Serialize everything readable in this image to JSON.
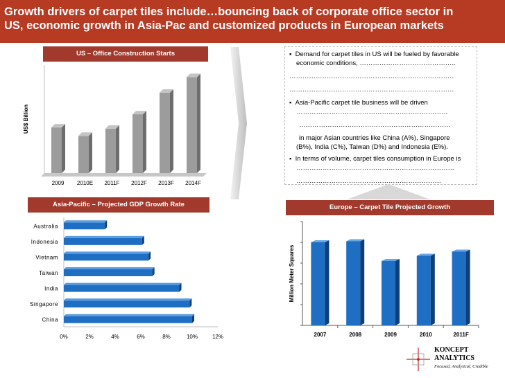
{
  "title": {
    "line1": "Growth drivers of carpet tiles include…bouncing back of corporate office sector in",
    "line2": "US, economic growth in Asia-Pac and customized products in European markets"
  },
  "notes": {
    "b1": "Demand for carpet tiles in US will be fueled by favorable",
    "b1_l2": "economic conditions, ……………………………………..",
    "b1_l3": "…………………………………………………………………",
    "b1_l4": "…………………………………………………………………",
    "b2": "Asia-Pacific carpet tile business will be driven",
    "b2_l2": "……………………………………………………………",
    "b2_l3": "……………………………………………………………",
    "b2_l4": "in major Asian countries like China (A%), Singapore",
    "b2_l5": "(B%), India (C%), Taiwan (D%) and Indonesia (E%).",
    "b3": "In terms of volume, carpet tiles consumption in Europe is",
    "b3_l2": "………………………………………………………………",
    "b3_l3": "…………………………………………………………"
  },
  "logo": {
    "name1": "KONCEPT",
    "name2": "ANALYTICS",
    "tagline": "Focused, Analytical, Credible"
  },
  "colors": {
    "brand": "#b73a23",
    "header": "#a13a2c",
    "gray_bar": "#999999",
    "blue_bar": "#1e6fc4"
  },
  "chart_data": [
    {
      "type": "bar",
      "title": "US – Office Construction Starts",
      "ylabel": "US$ Billion",
      "categories": [
        "2009",
        "2010E",
        "2011F",
        "2012F",
        "2013F",
        "2014F"
      ],
      "values": [
        38,
        31,
        37,
        49,
        67,
        80
      ],
      "ylim": [
        0,
        90
      ]
    },
    {
      "type": "bar",
      "orientation": "horizontal",
      "title": "Asia-Pacific – Projected GDP Growth Rate",
      "categories": [
        "Australia",
        "Indonesia",
        "Vietnam",
        "Taiwan",
        "India",
        "Singapore",
        "China"
      ],
      "values": [
        3.2,
        6.1,
        6.6,
        6.9,
        9.0,
        9.8,
        10.0
      ],
      "xticks": [
        "0%",
        "2%",
        "4%",
        "6%",
        "8%",
        "10%",
        "12%"
      ],
      "xlim": [
        0,
        12
      ]
    },
    {
      "type": "bar",
      "title": "Europe – Carpet Tile Projected Growth",
      "ylabel": "Million Meter Squares",
      "categories": [
        "2007",
        "2008",
        "2009",
        "2010",
        "2011F"
      ],
      "values": [
        80,
        81,
        62,
        67,
        71
      ],
      "ylim": [
        0,
        100
      ]
    }
  ]
}
